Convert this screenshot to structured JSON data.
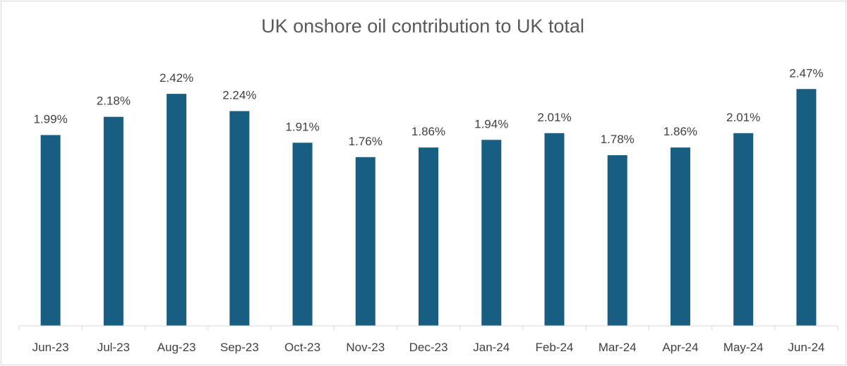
{
  "chart_data": {
    "type": "bar",
    "title": "UK onshore oil contribution to UK total",
    "xlabel": "",
    "ylabel": "",
    "ylim": [
      0,
      2.7
    ],
    "grid": false,
    "legend": "none",
    "bar_color": "#175E82",
    "categories": [
      "Jun-23",
      "Jul-23",
      "Aug-23",
      "Sep-23",
      "Oct-23",
      "Nov-23",
      "Dec-23",
      "Jan-24",
      "Feb-24",
      "Mar-24",
      "Apr-24",
      "May-24",
      "Jun-24"
    ],
    "values": [
      1.99,
      2.18,
      2.42,
      2.24,
      1.91,
      1.76,
      1.86,
      1.94,
      2.01,
      1.78,
      1.86,
      2.01,
      2.47
    ],
    "labels": [
      "1.99%",
      "2.18%",
      "2.42%",
      "2.24%",
      "1.91%",
      "1.76%",
      "1.86%",
      "1.94%",
      "2.01%",
      "1.78%",
      "1.86%",
      "2.01%",
      "2.47%"
    ]
  }
}
